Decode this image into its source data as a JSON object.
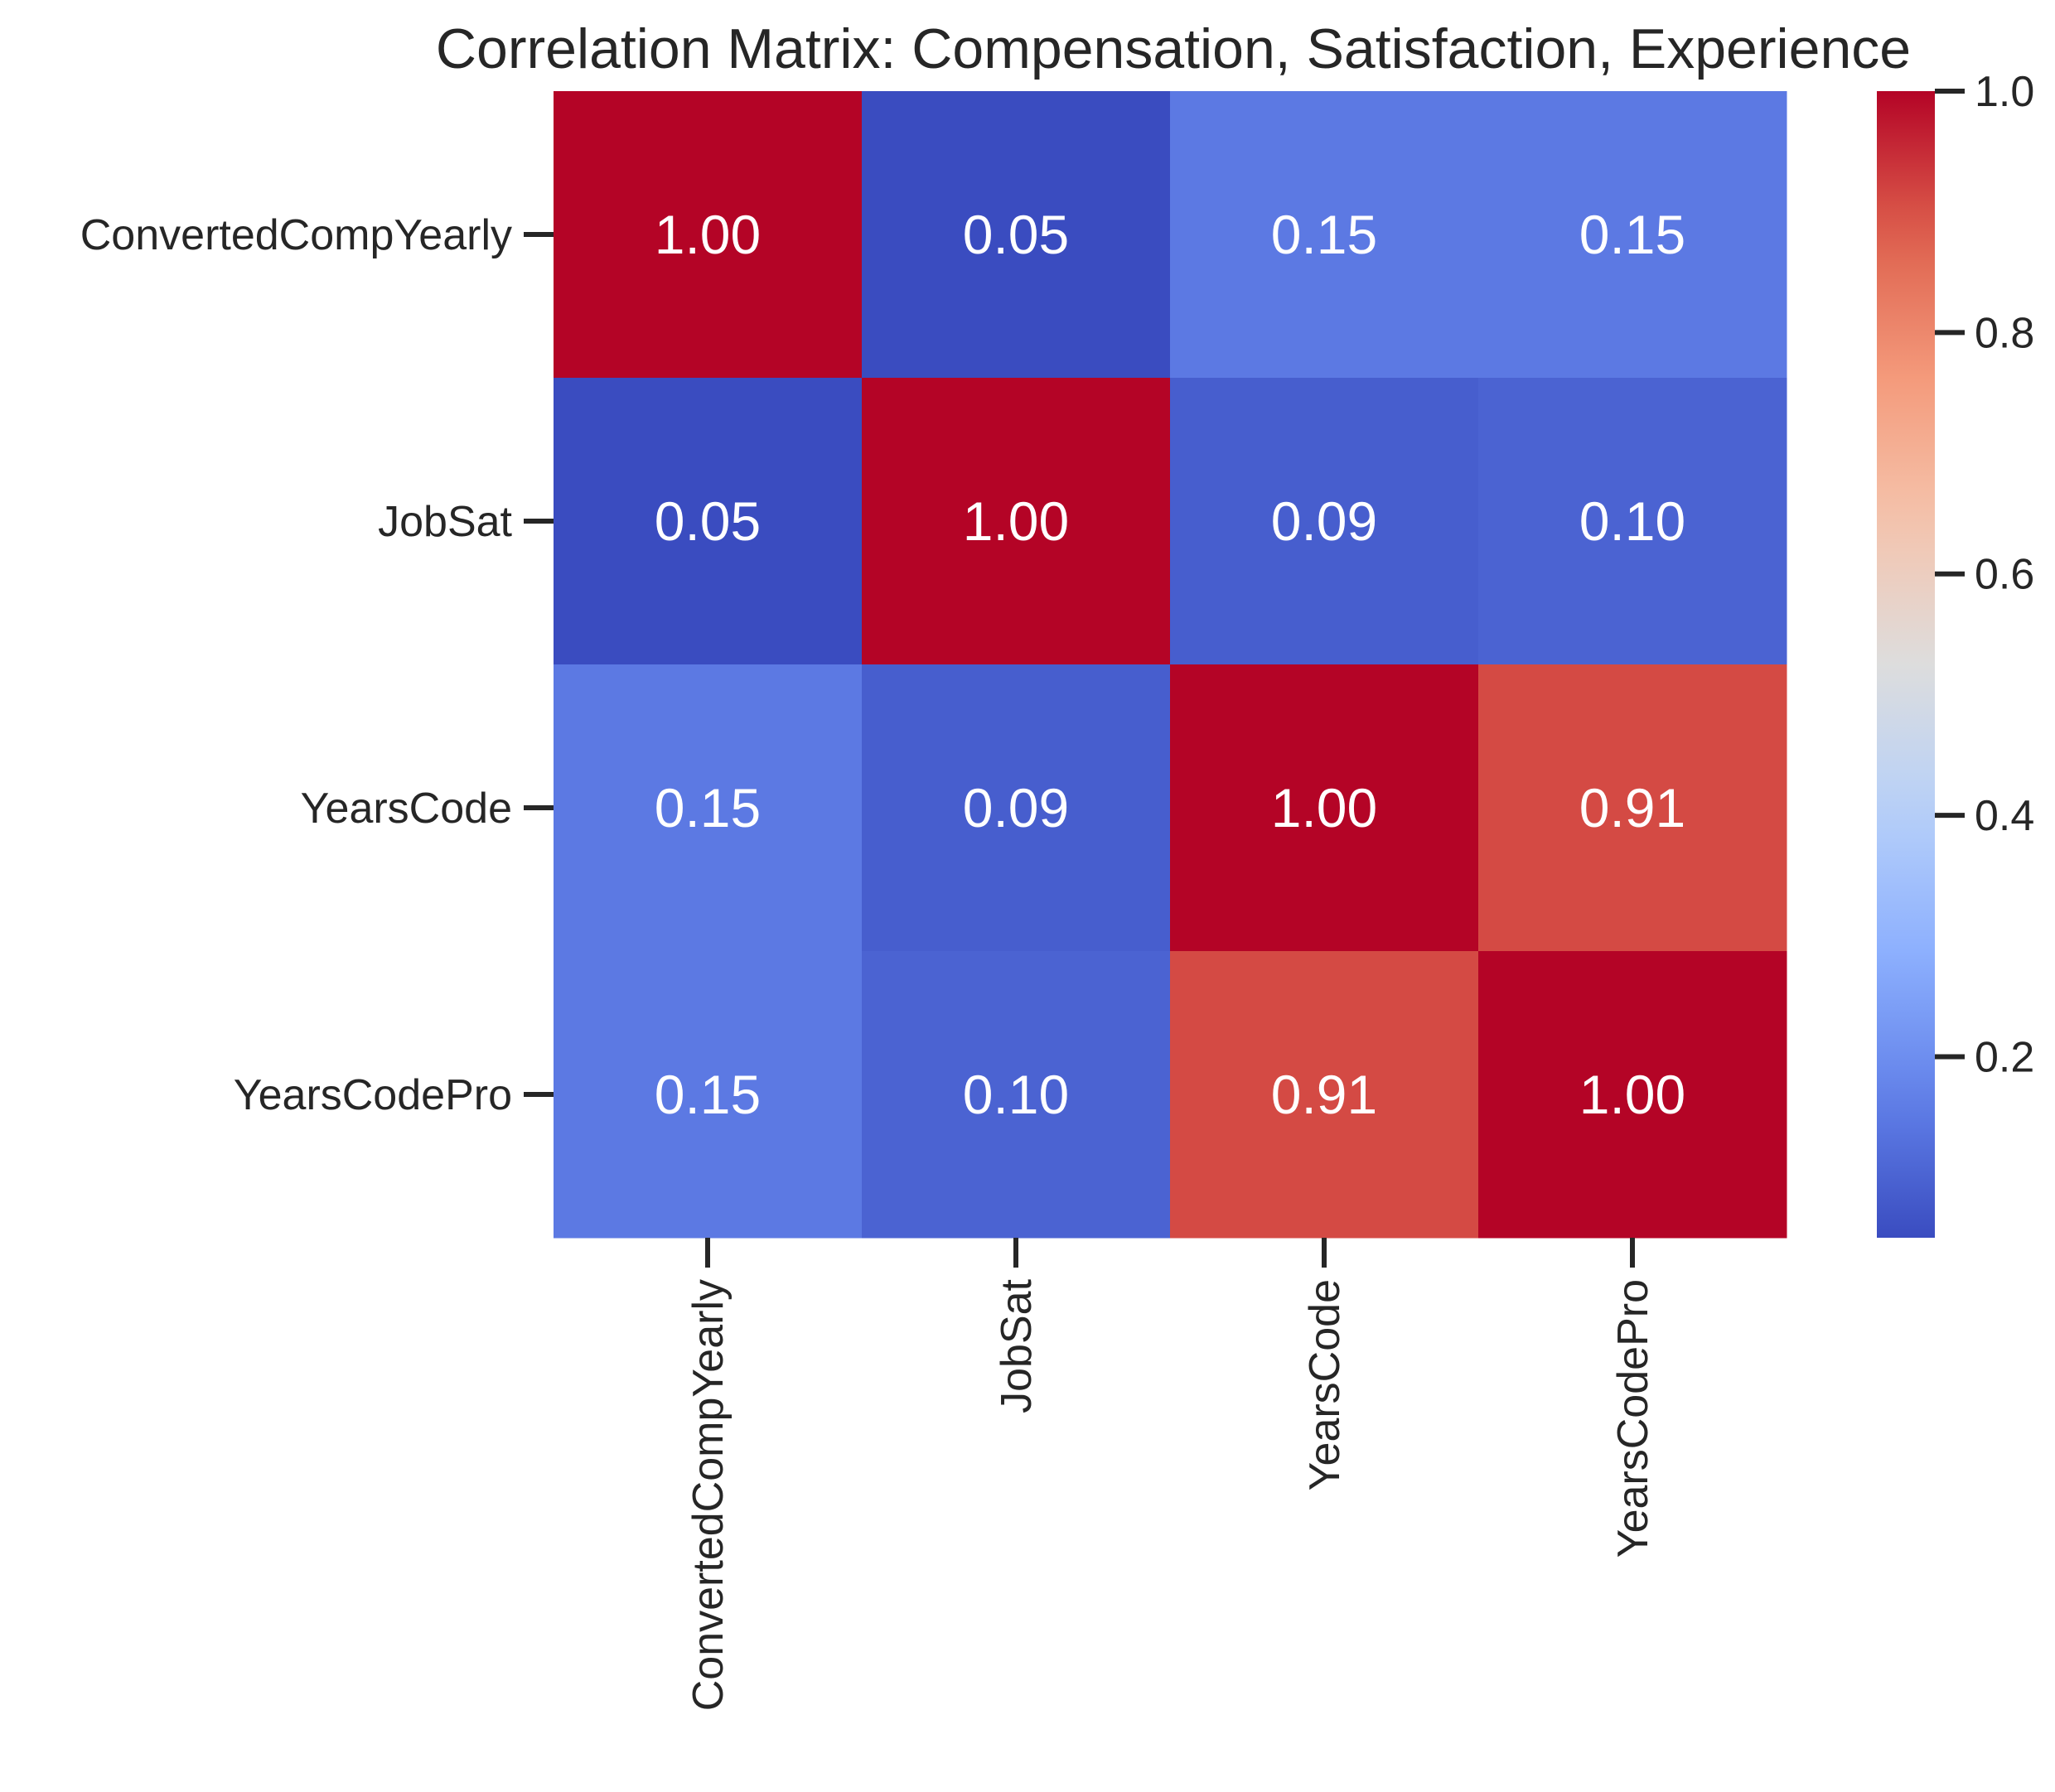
{
  "chart_data": {
    "type": "heatmap",
    "title": "Correlation Matrix: Compensation, Satisfaction, Experience",
    "rows": [
      "ConvertedCompYearly",
      "JobSat",
      "YearsCode",
      "YearsCodePro"
    ],
    "columns": [
      "ConvertedCompYearly",
      "JobSat",
      "YearsCode",
      "YearsCodePro"
    ],
    "values": [
      [
        1.0,
        0.05,
        0.15,
        0.15
      ],
      [
        0.05,
        1.0,
        0.09,
        0.1
      ],
      [
        0.15,
        0.09,
        1.0,
        0.91
      ],
      [
        0.15,
        0.1,
        0.91,
        1.0
      ]
    ],
    "value_format": "0.00",
    "colormap": "coolwarm",
    "color_range": [
      0.05,
      1.0
    ],
    "colorbar": {
      "ticks": [
        0.2,
        0.4,
        0.6,
        0.8,
        1.0
      ],
      "tick_labels": [
        "0.2",
        "0.4",
        "0.6",
        "0.8",
        "1.0"
      ],
      "placement": "right"
    },
    "xlabel": "",
    "ylabel": "",
    "x_tick_rotation": "vertical",
    "annotation_color": "#ffffff"
  }
}
